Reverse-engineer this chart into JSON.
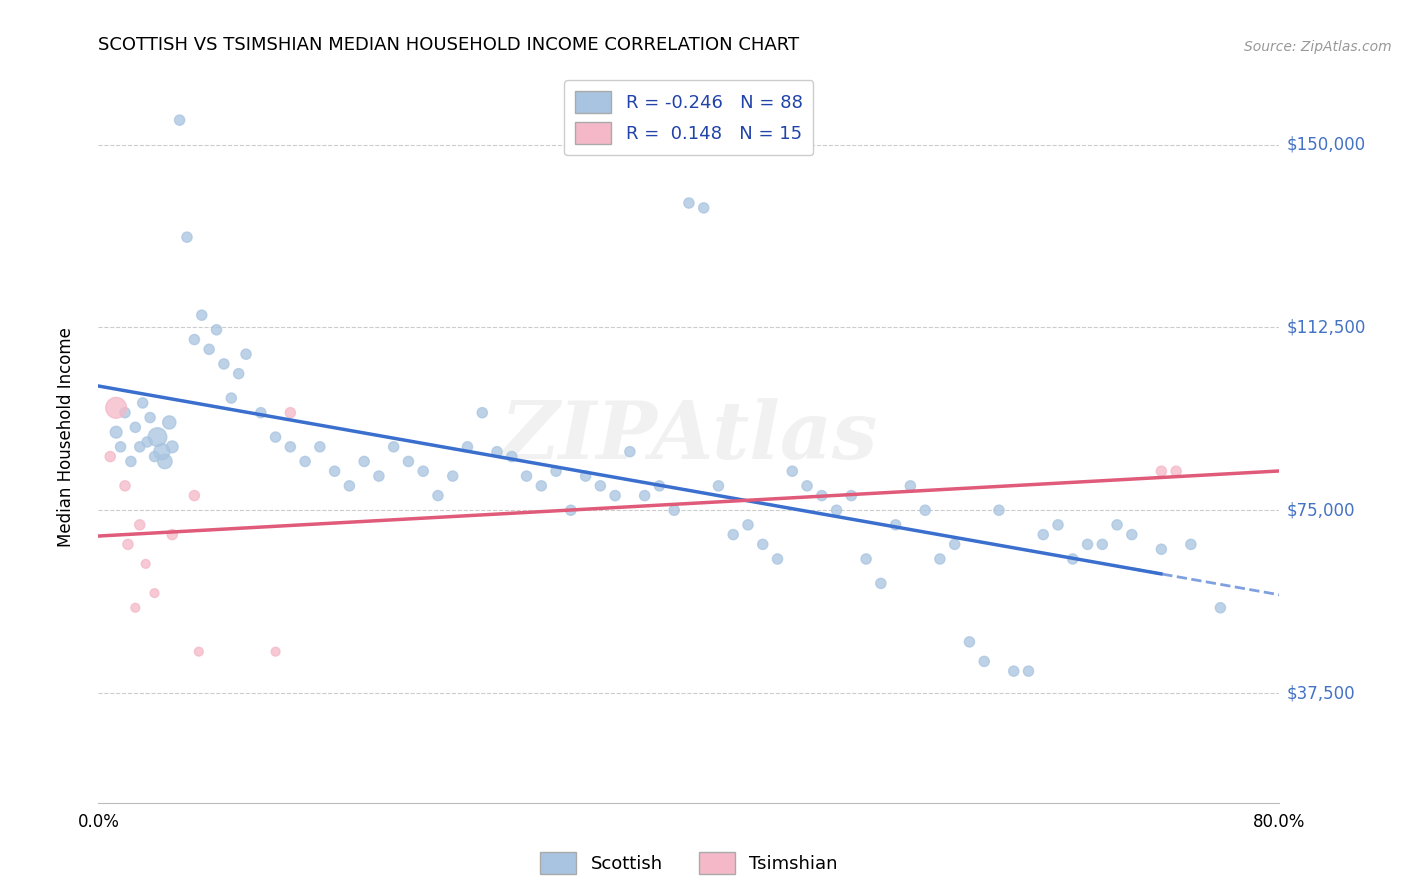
{
  "title": "SCOTTISH VS TSIMSHIAN MEDIAN HOUSEHOLD INCOME CORRELATION CHART",
  "source": "Source: ZipAtlas.com",
  "ylabel": "Median Household Income",
  "xlim": [
    0.0,
    0.8
  ],
  "ylim": [
    15000,
    165000
  ],
  "legend_r_scottish": "-0.246",
  "legend_n_scottish": "88",
  "legend_r_tsimshian": "0.148",
  "legend_n_tsimshian": "15",
  "scottish_color": "#a8c4e0",
  "scottish_line_color": "#3b6fce",
  "tsimshian_color": "#f4b8c8",
  "tsimshian_line_color": "#e05a7a",
  "ytick_vals": [
    37500,
    75000,
    112500,
    150000
  ],
  "ytick_labels": [
    "$37,500",
    "$75,000",
    "$112,500",
    "$150,000"
  ],
  "watermark": "ZIPAtlas",
  "scottish_x": [
    0.012,
    0.015,
    0.018,
    0.022,
    0.025,
    0.028,
    0.03,
    0.033,
    0.035,
    0.038,
    0.04,
    0.043,
    0.045,
    0.048,
    0.05,
    0.055,
    0.06,
    0.065,
    0.07,
    0.075,
    0.08,
    0.085,
    0.09,
    0.095,
    0.1,
    0.11,
    0.12,
    0.13,
    0.14,
    0.15,
    0.16,
    0.17,
    0.18,
    0.19,
    0.2,
    0.21,
    0.22,
    0.23,
    0.24,
    0.25,
    0.26,
    0.27,
    0.28,
    0.29,
    0.3,
    0.31,
    0.32,
    0.33,
    0.34,
    0.35,
    0.36,
    0.37,
    0.38,
    0.39,
    0.4,
    0.41,
    0.42,
    0.43,
    0.44,
    0.45,
    0.46,
    0.47,
    0.48,
    0.49,
    0.5,
    0.51,
    0.52,
    0.53,
    0.54,
    0.55,
    0.56,
    0.57,
    0.58,
    0.59,
    0.6,
    0.61,
    0.62,
    0.63,
    0.64,
    0.65,
    0.66,
    0.67,
    0.68,
    0.69,
    0.7,
    0.72,
    0.74,
    0.76
  ],
  "scottish_y": [
    91000,
    88000,
    95000,
    85000,
    92000,
    88000,
    97000,
    89000,
    94000,
    86000,
    90000,
    87000,
    85000,
    93000,
    88000,
    155000,
    131000,
    110000,
    115000,
    108000,
    112000,
    105000,
    98000,
    103000,
    107000,
    95000,
    90000,
    88000,
    85000,
    88000,
    83000,
    80000,
    85000,
    82000,
    88000,
    85000,
    83000,
    78000,
    82000,
    88000,
    95000,
    87000,
    86000,
    82000,
    80000,
    83000,
    75000,
    82000,
    80000,
    78000,
    87000,
    78000,
    80000,
    75000,
    138000,
    137000,
    80000,
    70000,
    72000,
    68000,
    65000,
    83000,
    80000,
    78000,
    75000,
    78000,
    65000,
    60000,
    72000,
    80000,
    75000,
    65000,
    68000,
    48000,
    44000,
    75000,
    42000,
    42000,
    70000,
    72000,
    65000,
    68000,
    68000,
    72000,
    70000,
    67000,
    68000,
    55000
  ],
  "scottish_sizes": [
    80,
    60,
    60,
    60,
    60,
    60,
    60,
    60,
    60,
    60,
    200,
    150,
    120,
    100,
    80,
    60,
    60,
    60,
    60,
    60,
    60,
    60,
    60,
    60,
    60,
    60,
    60,
    60,
    60,
    60,
    60,
    60,
    60,
    60,
    60,
    60,
    60,
    60,
    60,
    60,
    60,
    60,
    60,
    60,
    60,
    60,
    60,
    60,
    60,
    60,
    60,
    60,
    60,
    60,
    60,
    60,
    60,
    60,
    60,
    60,
    60,
    60,
    60,
    60,
    60,
    60,
    60,
    60,
    60,
    60,
    60,
    60,
    60,
    60,
    60,
    60,
    60,
    60,
    60,
    60,
    60,
    60,
    60,
    60,
    60,
    60,
    60,
    60
  ],
  "tsimshian_x": [
    0.008,
    0.012,
    0.018,
    0.02,
    0.025,
    0.028,
    0.032,
    0.038,
    0.05,
    0.065,
    0.068,
    0.12,
    0.13,
    0.72,
    0.73
  ],
  "tsimshian_y": [
    86000,
    96000,
    80000,
    68000,
    55000,
    72000,
    64000,
    58000,
    70000,
    78000,
    46000,
    46000,
    95000,
    83000,
    83000
  ],
  "tsimshian_sizes": [
    60,
    250,
    60,
    60,
    45,
    60,
    45,
    45,
    60,
    60,
    45,
    45,
    60,
    60,
    60
  ]
}
